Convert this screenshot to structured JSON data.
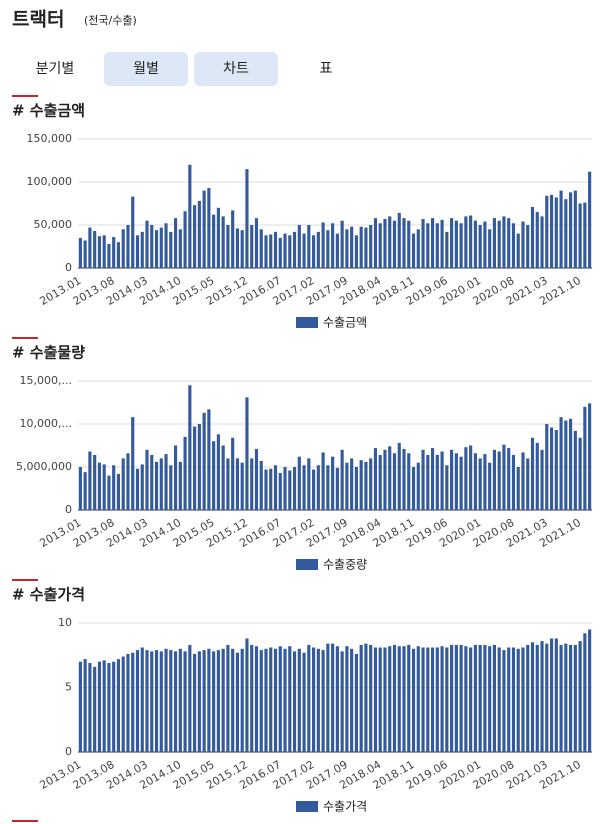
{
  "header": {
    "title": "트랙터",
    "subtitle": "(전국/수출)"
  },
  "tabs": [
    "분기별",
    "월별",
    "차트",
    "표"
  ],
  "chart_data": [
    {
      "type": "bar",
      "title": "# 수출금액",
      "categories": [
        "2013.01",
        null,
        null,
        null,
        null,
        null,
        null,
        "2013.08",
        null,
        null,
        null,
        null,
        null,
        null,
        "2014.03",
        null,
        null,
        null,
        null,
        null,
        null,
        "2014.10",
        null,
        null,
        null,
        null,
        null,
        null,
        "2015.05",
        null,
        null,
        null,
        null,
        null,
        null,
        "2015.12",
        null,
        null,
        null,
        null,
        null,
        null,
        "2016.07",
        null,
        null,
        null,
        null,
        null,
        null,
        "2017.02",
        null,
        null,
        null,
        null,
        null,
        null,
        "2017.09",
        null,
        null,
        null,
        null,
        null,
        null,
        "2018.04",
        null,
        null,
        null,
        null,
        null,
        null,
        "2018.11",
        null,
        null,
        null,
        null,
        null,
        null,
        "2019.06",
        null,
        null,
        null,
        null,
        null,
        null,
        "2020.01",
        null,
        null,
        null,
        null,
        null,
        null,
        "2020.08",
        null,
        null,
        null,
        null,
        null,
        null,
        "2021.03",
        null,
        null,
        null,
        null,
        null,
        null,
        "2021.10",
        null,
        null
      ],
      "series": [
        {
          "name": "수출금액",
          "color": "#335a9c",
          "values": [
            35000,
            32000,
            47000,
            43000,
            37000,
            38000,
            28000,
            36000,
            30000,
            45000,
            50000,
            83000,
            38000,
            42000,
            55000,
            50000,
            44000,
            47000,
            52000,
            42000,
            58000,
            45000,
            66000,
            120000,
            73000,
            78000,
            90000,
            93000,
            62000,
            70000,
            60000,
            50000,
            67000,
            46000,
            44000,
            115000,
            50000,
            58000,
            45000,
            38000,
            39000,
            42000,
            35000,
            40000,
            38000,
            42000,
            50000,
            40000,
            50000,
            38000,
            42000,
            53000,
            44000,
            52000,
            40000,
            55000,
            45000,
            48000,
            38000,
            48000,
            47000,
            50000,
            58000,
            52000,
            57000,
            60000,
            55000,
            64000,
            58000,
            55000,
            40000,
            45000,
            57000,
            52000,
            58000,
            52000,
            56000,
            42000,
            58000,
            55000,
            52000,
            60000,
            61000,
            55000,
            50000,
            54000,
            45000,
            58000,
            55000,
            60000,
            58000,
            52000,
            40000,
            54000,
            50000,
            71000,
            65000,
            60000,
            84000,
            85000,
            82000,
            90000,
            80000,
            88000,
            90000,
            75000,
            76000,
            112000
          ]
        }
      ],
      "ylim": [
        0,
        150000
      ],
      "yticks": [
        0,
        {
          "value": 50000,
          "label": "50,000"
        },
        {
          "value": 100000,
          "label": "100,000"
        },
        {
          "value": 150000,
          "label": "150,000"
        }
      ],
      "grid": true
    },
    {
      "type": "bar",
      "title": "# 수출물량",
      "categories": [
        "2013.01",
        null,
        null,
        null,
        null,
        null,
        null,
        "2013.08",
        null,
        null,
        null,
        null,
        null,
        null,
        "2014.03",
        null,
        null,
        null,
        null,
        null,
        null,
        "2014.10",
        null,
        null,
        null,
        null,
        null,
        null,
        "2015.05",
        null,
        null,
        null,
        null,
        null,
        null,
        "2015.12",
        null,
        null,
        null,
        null,
        null,
        null,
        "2016.07",
        null,
        null,
        null,
        null,
        null,
        null,
        "2017.02",
        null,
        null,
        null,
        null,
        null,
        null,
        "2017.09",
        null,
        null,
        null,
        null,
        null,
        null,
        "2018.04",
        null,
        null,
        null,
        null,
        null,
        null,
        "2018.11",
        null,
        null,
        null,
        null,
        null,
        null,
        "2019.06",
        null,
        null,
        null,
        null,
        null,
        null,
        "2020.01",
        null,
        null,
        null,
        null,
        null,
        null,
        "2020.08",
        null,
        null,
        null,
        null,
        null,
        null,
        "2021.03",
        null,
        null,
        null,
        null,
        null,
        null,
        "2021.10",
        null,
        null
      ],
      "series": [
        {
          "name": "수출중량",
          "color": "#335a9c",
          "values": [
            5000000,
            4400000,
            6800000,
            6400000,
            5500000,
            5300000,
            4000000,
            5200000,
            4200000,
            6000000,
            6600000,
            10800000,
            4800000,
            5300000,
            7000000,
            6400000,
            5600000,
            6000000,
            6500000,
            5200000,
            7500000,
            5600000,
            8500000,
            14500000,
            9700000,
            10000000,
            11300000,
            11700000,
            8000000,
            8800000,
            7500000,
            6000000,
            8400000,
            6000000,
            5500000,
            13100000,
            6000000,
            7100000,
            5700000,
            4700000,
            4800000,
            5200000,
            4300000,
            5000000,
            4600000,
            5000000,
            6200000,
            5200000,
            6000000,
            4700000,
            5200000,
            6700000,
            5200000,
            6200000,
            4900000,
            7000000,
            5500000,
            6000000,
            5000000,
            5800000,
            5600000,
            6000000,
            7200000,
            6400000,
            7000000,
            7400000,
            6600000,
            7800000,
            7100000,
            6600000,
            5000000,
            5500000,
            7000000,
            6400000,
            7200000,
            6400000,
            6800000,
            5200000,
            7000000,
            6600000,
            6200000,
            7300000,
            7500000,
            6600000,
            6000000,
            6500000,
            5500000,
            7000000,
            6800000,
            7600000,
            7200000,
            6400000,
            5000000,
            6700000,
            6000000,
            8400000,
            7800000,
            7000000,
            10000000,
            9600000,
            9300000,
            10800000,
            10400000,
            10600000,
            9200000,
            8400000,
            12000000,
            12400000
          ]
        }
      ],
      "ylim": [
        0,
        15000000
      ],
      "yticks": [
        0,
        {
          "value": 5000000,
          "label": "5,000,000"
        },
        {
          "value": 10000000,
          "label": "10,000,..."
        },
        {
          "value": 15000000,
          "label": "15,000,..."
        }
      ],
      "grid": true
    },
    {
      "type": "bar",
      "title": "# 수출가격",
      "categories": [
        "2013.01",
        null,
        null,
        null,
        null,
        null,
        null,
        "2013.08",
        null,
        null,
        null,
        null,
        null,
        null,
        "2014.03",
        null,
        null,
        null,
        null,
        null,
        null,
        "2014.10",
        null,
        null,
        null,
        null,
        null,
        null,
        "2015.05",
        null,
        null,
        null,
        null,
        null,
        null,
        "2015.12",
        null,
        null,
        null,
        null,
        null,
        null,
        "2016.07",
        null,
        null,
        null,
        null,
        null,
        null,
        "2017.02",
        null,
        null,
        null,
        null,
        null,
        null,
        "2017.09",
        null,
        null,
        null,
        null,
        null,
        null,
        "2018.04",
        null,
        null,
        null,
        null,
        null,
        null,
        "2018.11",
        null,
        null,
        null,
        null,
        null,
        null,
        "2019.06",
        null,
        null,
        null,
        null,
        null,
        null,
        "2020.01",
        null,
        null,
        null,
        null,
        null,
        null,
        "2020.08",
        null,
        null,
        null,
        null,
        null,
        null,
        "2021.03",
        null,
        null,
        null,
        null,
        null,
        null,
        "2021.10",
        null,
        null
      ],
      "series": [
        {
          "name": "수출가격",
          "color": "#335a9c",
          "values": [
            7.0,
            7.2,
            6.9,
            6.6,
            7.0,
            7.1,
            6.9,
            7.0,
            7.2,
            7.4,
            7.6,
            7.7,
            7.9,
            8.1,
            7.9,
            7.8,
            7.9,
            7.8,
            8.0,
            7.9,
            7.8,
            8.0,
            7.8,
            8.3,
            7.6,
            7.8,
            7.9,
            8.0,
            7.8,
            7.9,
            8.0,
            8.3,
            8.0,
            7.7,
            8.0,
            8.8,
            8.3,
            8.2,
            7.9,
            8.0,
            8.1,
            8.0,
            8.2,
            8.0,
            8.2,
            7.8,
            8.0,
            7.7,
            8.3,
            8.1,
            8.0,
            7.9,
            8.4,
            8.4,
            8.2,
            7.8,
            8.2,
            8.0,
            7.6,
            8.3,
            8.4,
            8.3,
            8.1,
            8.1,
            8.1,
            8.2,
            8.3,
            8.2,
            8.2,
            8.3,
            8.0,
            8.2,
            8.1,
            8.1,
            8.1,
            8.1,
            8.2,
            8.1,
            8.3,
            8.3,
            8.3,
            8.2,
            8.1,
            8.3,
            8.3,
            8.3,
            8.2,
            8.3,
            8.1,
            7.9,
            8.1,
            8.1,
            8.0,
            8.1,
            8.3,
            8.5,
            8.3,
            8.6,
            8.4,
            8.8,
            8.8,
            8.3,
            8.4,
            8.3,
            8.3,
            8.6,
            9.2,
            9.5
          ]
        }
      ],
      "ylim": [
        0,
        10
      ],
      "yticks": [
        0,
        5,
        10
      ],
      "grid": true
    }
  ]
}
